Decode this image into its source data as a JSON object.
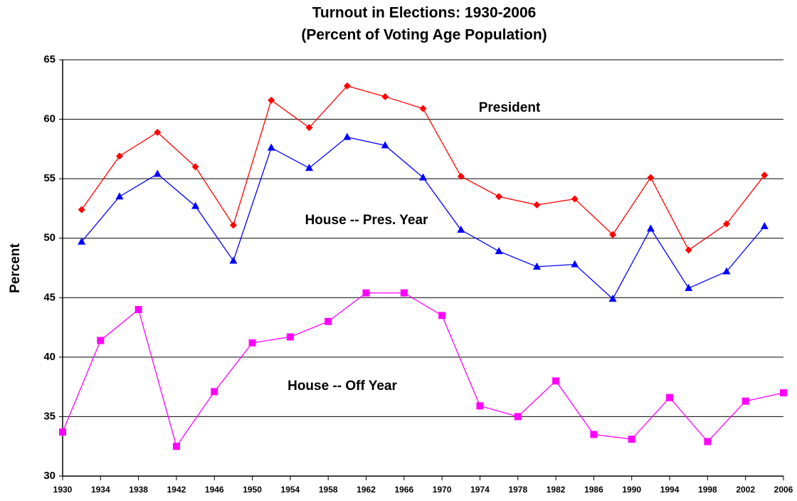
{
  "chart_data": {
    "type": "line",
    "title": "Turnout in Elections: 1930-2006",
    "subtitle": "(Percent of Voting Age Population)",
    "y_label": "Percent",
    "xlim": [
      1930,
      2006
    ],
    "xticks": [
      1930,
      1934,
      1938,
      1942,
      1946,
      1950,
      1954,
      1958,
      1962,
      1966,
      1970,
      1974,
      1978,
      1982,
      1986,
      1990,
      1994,
      1998,
      2002,
      2006
    ],
    "ylim": [
      30,
      65
    ],
    "yticks": [
      30,
      35,
      40,
      45,
      50,
      55,
      60,
      65
    ],
    "grid": true,
    "series": [
      {
        "name": "President",
        "color": "#ff0000",
        "marker": "diamond",
        "x": [
          1932,
          1936,
          1940,
          1944,
          1948,
          1952,
          1956,
          1960,
          1964,
          1968,
          1972,
          1976,
          1980,
          1984,
          1988,
          1992,
          1996,
          2000,
          2004
        ],
        "values": [
          52.4,
          56.9,
          58.9,
          56.0,
          51.1,
          61.6,
          59.3,
          62.8,
          61.9,
          60.9,
          55.2,
          53.5,
          52.8,
          53.3,
          50.3,
          55.1,
          49.0,
          51.2,
          55.3
        ]
      },
      {
        "name": "House -- Pres. Year",
        "color": "#0000ff",
        "marker": "triangle",
        "x": [
          1932,
          1936,
          1940,
          1944,
          1948,
          1952,
          1956,
          1960,
          1964,
          1968,
          1972,
          1976,
          1980,
          1984,
          1988,
          1992,
          1996,
          2000,
          2004
        ],
        "values": [
          49.7,
          53.5,
          55.4,
          52.7,
          48.1,
          57.6,
          55.9,
          58.5,
          57.8,
          55.1,
          50.7,
          48.9,
          47.6,
          47.8,
          44.9,
          50.8,
          45.8,
          47.2,
          51.0
        ]
      },
      {
        "name": "House -- Off Year",
        "color": "#ff00ff",
        "marker": "square",
        "x": [
          1930,
          1934,
          1938,
          1942,
          1946,
          1950,
          1954,
          1958,
          1962,
          1966,
          1970,
          1974,
          1978,
          1982,
          1986,
          1990,
          1994,
          1998,
          2002,
          2006
        ],
        "values": [
          33.7,
          41.4,
          44.0,
          32.5,
          37.1,
          41.2,
          41.7,
          43.0,
          45.4,
          45.4,
          43.5,
          35.9,
          35.0,
          38.0,
          33.5,
          33.1,
          36.6,
          32.9,
          36.3,
          37.0
        ]
      }
    ]
  }
}
